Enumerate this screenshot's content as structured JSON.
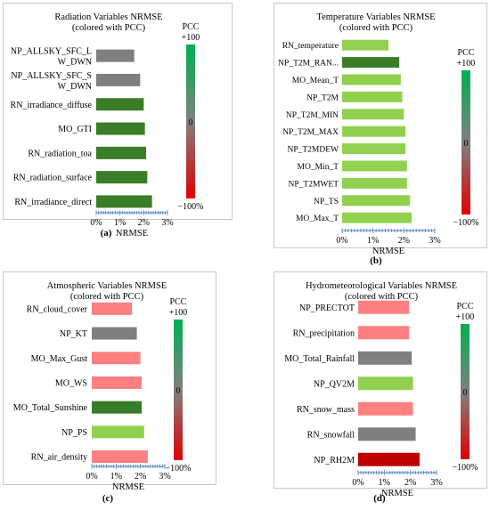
{
  "colors": {
    "dark_green": "#3a7d28",
    "light_green": "#92d050",
    "gray": "#7f7f7f",
    "pink": "#ff8080",
    "dark_red": "#c00000",
    "axis": "#4f81bd"
  },
  "colorbar": {
    "label": "PCC",
    "top": "+100",
    "mid": "0",
    "bottom": "−100%"
  },
  "chart_data": [
    {
      "type": "bar",
      "orientation": "horizontal",
      "panel": "a",
      "caption": "(a)",
      "title": "Radiation Variables NRMSE",
      "subtitle": "(colored with PCC)",
      "xlabel": "NRMSE",
      "xlim": [
        0,
        3
      ],
      "xticks": [
        "0%",
        "1%",
        "2%",
        "3%"
      ],
      "categories": [
        "NP_ALLSKY_SFC_L\nW_DWN",
        "NP_ALLSKY_SFC_S\nW_DWN",
        "RN_irradiance_diffuse",
        "MO_GTI",
        "RN_radiation_toa",
        "RN_radiation_surface",
        "RN_irradiance_direct"
      ],
      "values": [
        1.6,
        1.85,
        2.0,
        2.05,
        2.1,
        2.15,
        2.35
      ],
      "bar_colors": [
        "gray",
        "gray",
        "dark_green",
        "dark_green",
        "dark_green",
        "dark_green",
        "dark_green"
      ]
    },
    {
      "type": "bar",
      "orientation": "horizontal",
      "panel": "b",
      "caption": "(b)",
      "title": "Temperature Variables NRMSE",
      "subtitle": "(colored with PCC)",
      "xlabel": "NRMSE",
      "xlim": [
        0,
        3
      ],
      "xticks": [
        "0%",
        "1%",
        "2%",
        "3%"
      ],
      "categories": [
        "RN_temperature",
        "NP_T2M_RAN...",
        "MO_Mean_T",
        "NP_T2M",
        "NP_T2M_MIN",
        "NP_T2M_MAX",
        "NP_T2MDEW",
        "MO_Min_T",
        "NP_T2MWET",
        "NP_TS",
        "MO_Max_T"
      ],
      "values": [
        1.5,
        1.85,
        1.9,
        1.95,
        2.0,
        2.05,
        2.05,
        2.1,
        2.1,
        2.2,
        2.25
      ],
      "bar_colors": [
        "light_green",
        "dark_green",
        "light_green",
        "light_green",
        "light_green",
        "light_green",
        "light_green",
        "light_green",
        "light_green",
        "light_green",
        "light_green"
      ]
    },
    {
      "type": "bar",
      "orientation": "horizontal",
      "panel": "c",
      "caption": "(c)",
      "title": "Atmospheric Variables NRMSE",
      "subtitle": "(colored with PCC)",
      "xlabel": "NRMSE",
      "xlim": [
        0,
        3
      ],
      "xticks": [
        "0%",
        "1%",
        "2%",
        "3%"
      ],
      "categories": [
        "RN_cloud_cover",
        "NP_KT",
        "MO_Max_Gust",
        "MO_WS",
        "MO_Total_Sunshine",
        "NP_PS",
        "RN_air_density"
      ],
      "values": [
        1.65,
        1.85,
        2.0,
        2.05,
        2.05,
        2.15,
        2.3
      ],
      "bar_colors": [
        "pink",
        "gray",
        "pink",
        "pink",
        "dark_green",
        "light_green",
        "pink"
      ]
    },
    {
      "type": "bar",
      "orientation": "horizontal",
      "panel": "d",
      "caption": "(d)",
      "title": "Hydrometeorological Variables NRMSE",
      "subtitle": "(colored with PCC)",
      "xlabel": "NRMSE",
      "xlim": [
        0,
        3
      ],
      "xticks": [
        "0%",
        "1%",
        "2%",
        "3%"
      ],
      "categories": [
        "NP_PRECTOT",
        "RN_precipitation",
        "MO_Total_Rainfall",
        "NP_QV2M",
        "RN_snow_mass",
        "RN_snowfall",
        "NP_RH2M"
      ],
      "values": [
        1.95,
        1.95,
        2.05,
        2.1,
        2.1,
        2.2,
        2.35
      ],
      "bar_colors": [
        "pink",
        "pink",
        "gray",
        "light_green",
        "pink",
        "gray",
        "dark_red"
      ]
    }
  ]
}
